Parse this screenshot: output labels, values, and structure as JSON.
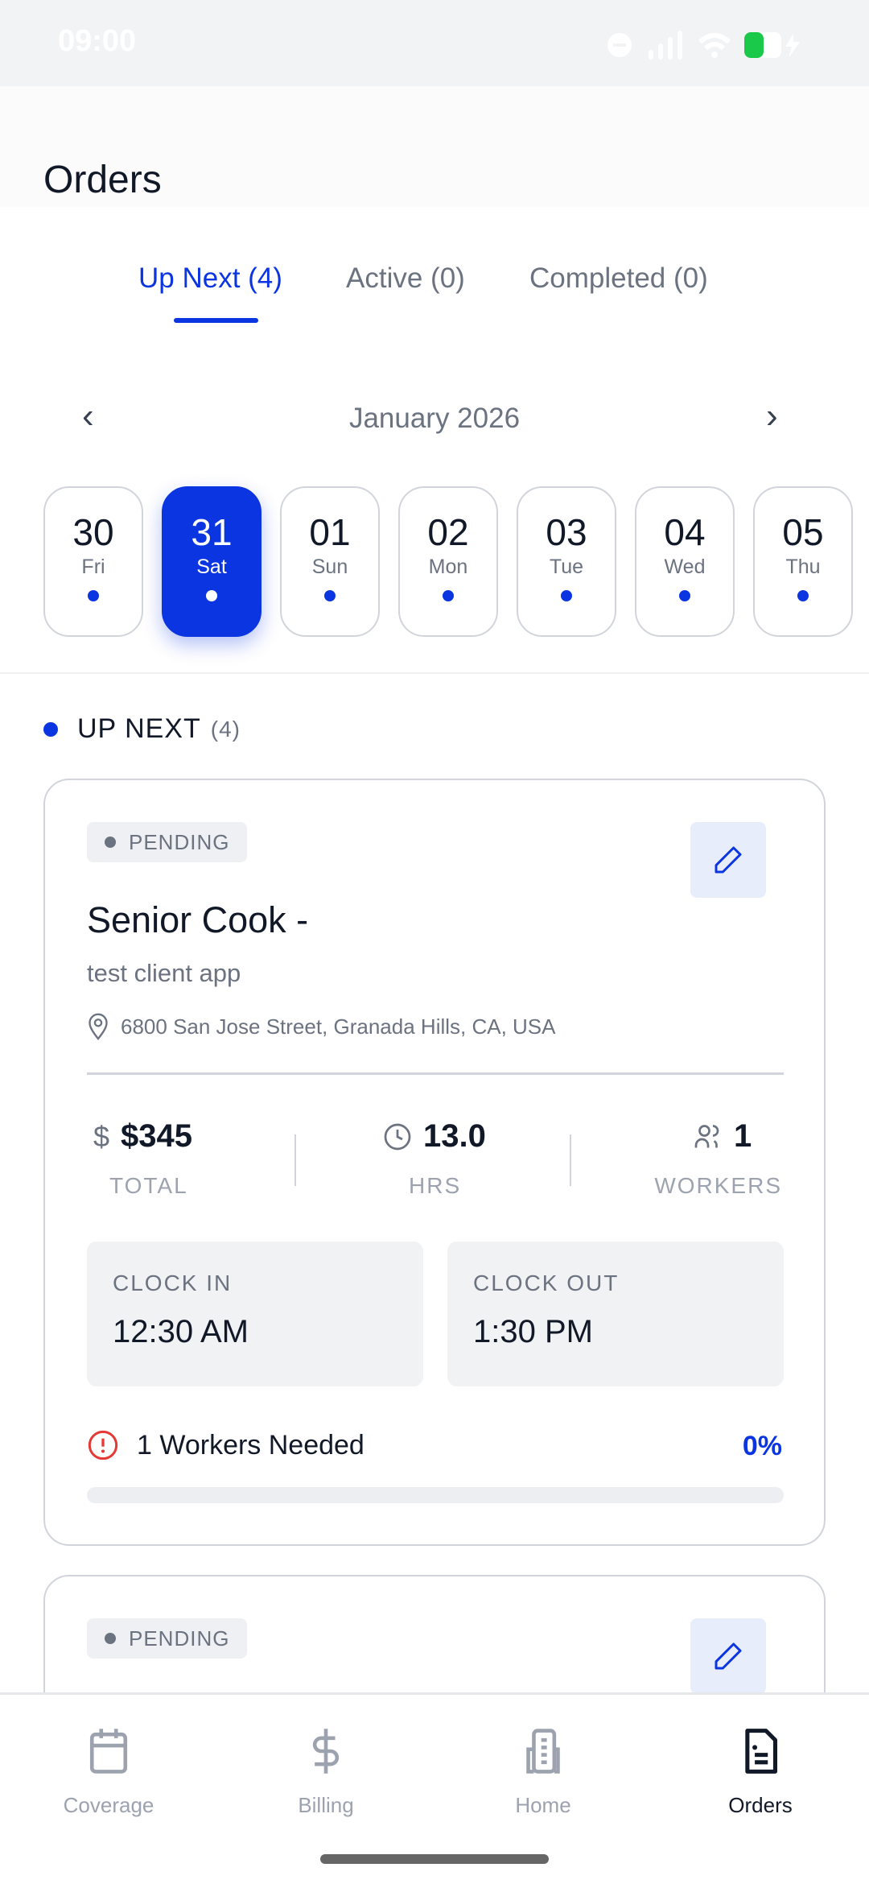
{
  "status_bar": {
    "time": "09:00",
    "battery_color": "#1ac94a"
  },
  "header": {
    "title": "Orders"
  },
  "tabs": [
    {
      "label": "Up Next (4)",
      "active": true
    },
    {
      "label": "Active (0)"
    },
    {
      "label": "Completed (0)"
    }
  ],
  "calendar": {
    "month": "January 2026",
    "days": [
      {
        "day": "30",
        "weekday": "Fri"
      },
      {
        "day": "31",
        "weekday": "Sat",
        "selected": true
      },
      {
        "day": "01",
        "weekday": "Sun"
      },
      {
        "day": "02",
        "weekday": "Mon"
      },
      {
        "day": "03",
        "weekday": "Tue"
      },
      {
        "day": "04",
        "weekday": "Wed"
      },
      {
        "day": "05",
        "weekday": "Thu"
      }
    ]
  },
  "section": {
    "label": "UP NEXT",
    "count": "(4)"
  },
  "orders": [
    {
      "status": "PENDING",
      "title": "Senior Cook -",
      "client": "test client app",
      "address": "6800 San Jose Street, Granada Hills, CA, USA",
      "total": "$345",
      "total_label": "TOTAL",
      "hours": "13.0",
      "hours_label": "HRS",
      "workers": "1",
      "workers_label": "WORKERS",
      "clock_in_label": "CLOCK IN",
      "clock_in": "12:30 AM",
      "clock_out_label": "CLOCK OUT",
      "clock_out": "1:30 PM",
      "needed": "1 Workers Needed",
      "progress": "0%",
      "progress_value": 0
    },
    {
      "status": "PENDING"
    }
  ],
  "nav": [
    {
      "label": "Coverage",
      "icon": "calendar-icon"
    },
    {
      "label": "Billing",
      "icon": "dollar-icon"
    },
    {
      "label": "Home",
      "icon": "building-icon"
    },
    {
      "label": "Orders",
      "icon": "document-icon",
      "active": true
    }
  ],
  "accent": "#0b35e0"
}
